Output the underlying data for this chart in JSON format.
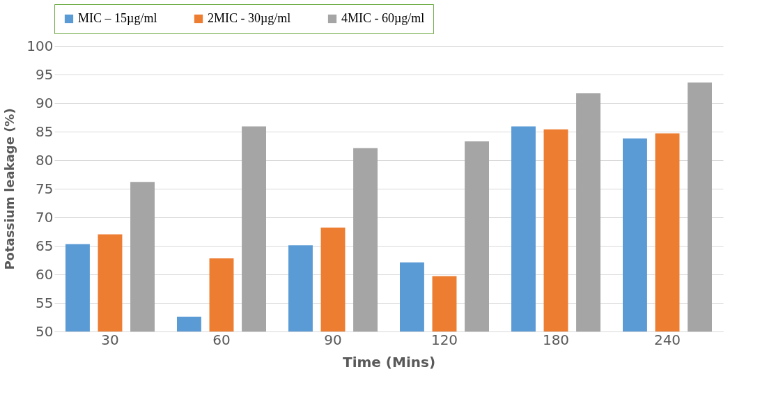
{
  "chart_data": {
    "type": "bar",
    "xlabel": "Time (Mins)",
    "ylabel": "Potassium leakage (%)",
    "categories": [
      "30",
      "60",
      "90",
      "120",
      "180",
      "240"
    ],
    "series": [
      {
        "name": "MIC – 15µg/ml",
        "color": "#5b9bd5",
        "values": [
          65.3,
          52.6,
          65.1,
          62.1,
          85.9,
          83.8
        ]
      },
      {
        "name": "2MIC - 30µg/ml",
        "color": "#ed7d31",
        "values": [
          67.0,
          62.8,
          68.2,
          59.7,
          85.4,
          84.7
        ]
      },
      {
        "name": "4MIC - 60µg/ml",
        "color": "#a5a5a5",
        "values": [
          76.2,
          85.9,
          82.1,
          83.3,
          91.7,
          93.6
        ]
      }
    ],
    "ylim": [
      50,
      100
    ],
    "yticks": [
      50,
      55,
      60,
      65,
      70,
      75,
      80,
      85,
      90,
      95,
      100
    ],
    "grid": "y",
    "legend": "top"
  }
}
